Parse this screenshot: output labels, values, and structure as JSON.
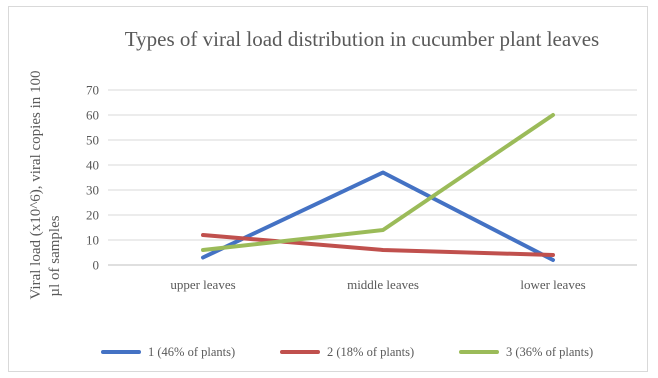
{
  "chart_data": {
    "type": "line",
    "title": "Types of viral load distribution in cucumber plant leaves",
    "ylabel_line1": "Viral load (x10^6), viral copies in 100",
    "ylabel_line2": "µl of samples",
    "xlabel": "",
    "categories": [
      "upper leaves",
      "middle leaves",
      "lower leaves"
    ],
    "yticks": [
      "0",
      "10",
      "20",
      "30",
      "40",
      "50",
      "60",
      "70"
    ],
    "ylim": [
      0,
      70
    ],
    "grid": true,
    "legend": "bottom",
    "series": [
      {
        "name": "1 (46% of plants)",
        "values": [
          3,
          37,
          2
        ],
        "color": "#4472c4"
      },
      {
        "name": "2 (18% of plants)",
        "values": [
          12,
          6,
          4
        ],
        "color": "#c0504d"
      },
      {
        "name": "3 (36% of plants)",
        "values": [
          6,
          14,
          60
        ],
        "color": "#9bbb59"
      }
    ]
  }
}
